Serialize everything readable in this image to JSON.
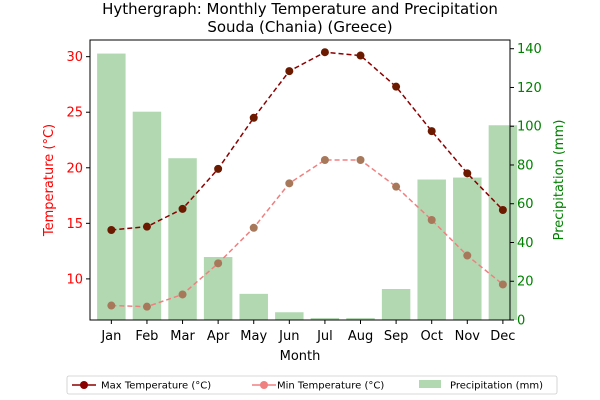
{
  "chart_data": {
    "type": "bar+line",
    "title_line1": "Hythergraph: Monthly Temperature and Precipitation",
    "title_line2": "Souda (Chania) (Greece)",
    "xlabel": "Month",
    "ylabel_left": "Temperature (°C)",
    "ylabel_right": "Precipitation (mm)",
    "categories": [
      "Jan",
      "Feb",
      "Mar",
      "Apr",
      "May",
      "Jun",
      "Jul",
      "Aug",
      "Sep",
      "Oct",
      "Nov",
      "Dec"
    ],
    "ylim_left": [
      6.3,
      31.5
    ],
    "yticks_left": [
      10,
      15,
      20,
      25,
      30
    ],
    "ylim_right": [
      0,
      144.5
    ],
    "yticks_right": [
      0,
      20,
      40,
      60,
      80,
      100,
      120,
      140
    ],
    "series": [
      {
        "name": "Max Temperature (°C)",
        "type": "line",
        "axis": "left",
        "color": "#8b0000",
        "values": [
          14.4,
          14.7,
          16.3,
          19.9,
          24.5,
          28.7,
          30.4,
          30.1,
          27.3,
          23.3,
          19.5,
          16.2
        ]
      },
      {
        "name": "Min Temperature (°C)",
        "type": "line",
        "axis": "left",
        "color": "#f08080",
        "values": [
          7.6,
          7.5,
          8.6,
          11.4,
          14.6,
          18.6,
          20.7,
          20.7,
          18.3,
          15.3,
          12.1,
          9.5
        ]
      },
      {
        "name": "Precipitation (mm)",
        "type": "bar",
        "axis": "right",
        "color": "#b2d8b2",
        "values": [
          137.5,
          107.5,
          83.5,
          32.5,
          13.5,
          4.0,
          1.0,
          1.0,
          16.0,
          72.5,
          73.5,
          100.5
        ]
      }
    ],
    "left_axis_color": "#ff0000",
    "right_axis_color": "#008000",
    "legend_position": "bottom"
  }
}
